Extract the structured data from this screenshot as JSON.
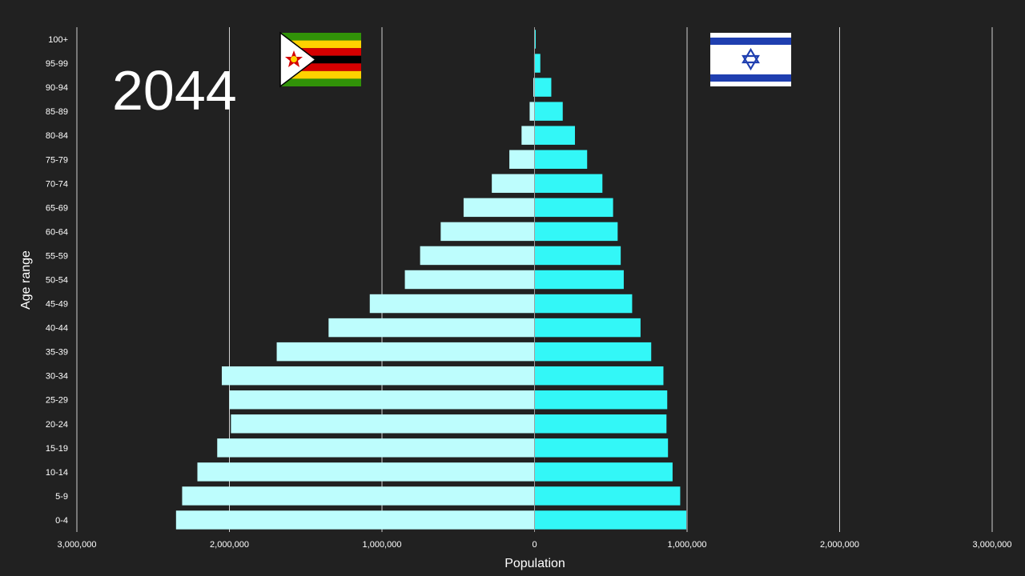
{
  "year": "2044",
  "flags": {
    "left": {
      "country": "Zimbabwe",
      "icon": "zimbabwe-flag-icon"
    },
    "right": {
      "country": "Israel",
      "icon": "israel-flag-icon"
    }
  },
  "colors": {
    "background": "#212121",
    "left_bar": "#bdfdfd",
    "right_bar": "#33f7f7",
    "grid": "#d0d0d0",
    "text": "#ffffff"
  },
  "chart_data": {
    "type": "bar",
    "orientation": "horizontal-pyramid",
    "xlabel": "Population",
    "ylabel": "Age range",
    "xlim": [
      -3000000,
      3000000
    ],
    "x_ticks": [
      -3000000,
      -2000000,
      -1000000,
      0,
      1000000,
      2000000,
      3000000
    ],
    "x_tick_labels": [
      "3,000,000",
      "2,000,000",
      "1,000,000",
      "0",
      "1,000,000",
      "2,000,000",
      "3,000,000"
    ],
    "categories": [
      "0-4",
      "5-9",
      "10-14",
      "15-19",
      "20-24",
      "25-29",
      "30-34",
      "35-39",
      "40-44",
      "45-49",
      "50-54",
      "55-59",
      "60-64",
      "65-69",
      "70-74",
      "75-79",
      "80-84",
      "85-89",
      "90-94",
      "95-99",
      "100+"
    ],
    "series": [
      {
        "name": "Zimbabwe",
        "side": "left",
        "values": [
          2350000,
          2310000,
          2210000,
          2080000,
          1990000,
          2000000,
          2050000,
          1690000,
          1350000,
          1080000,
          850000,
          750000,
          615000,
          465000,
          280000,
          165000,
          85000,
          32000,
          8000,
          3000,
          1000
        ]
      },
      {
        "name": "Israel",
        "side": "right",
        "values": [
          995000,
          955000,
          905000,
          875000,
          865000,
          870000,
          845000,
          765000,
          695000,
          640000,
          585000,
          565000,
          545000,
          515000,
          445000,
          345000,
          265000,
          185000,
          110000,
          38000,
          8000
        ]
      }
    ]
  }
}
